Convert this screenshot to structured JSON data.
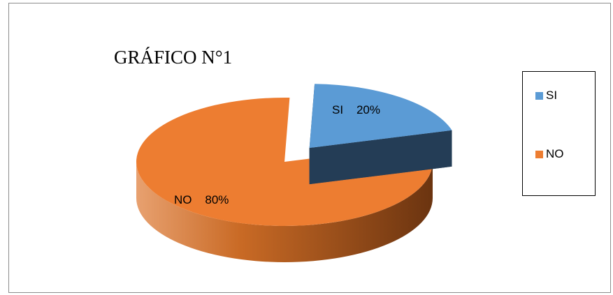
{
  "chart_data": {
    "type": "pie",
    "title": "GRÁFICO N°1",
    "categories": [
      "SI",
      "NO"
    ],
    "values": [
      20,
      80
    ],
    "unit": "%",
    "colors": [
      "#5b9bd5",
      "#ed7d31"
    ],
    "data_labels": [
      {
        "category": "SI",
        "value": "20%"
      },
      {
        "category": "NO",
        "value": "80%"
      }
    ],
    "legend": {
      "placement": "right",
      "entries": [
        {
          "label": "SI",
          "color": "#5b9bd5"
        },
        {
          "label": "NO",
          "color": "#ed7d31"
        }
      ]
    },
    "style": "3d-exploded"
  }
}
